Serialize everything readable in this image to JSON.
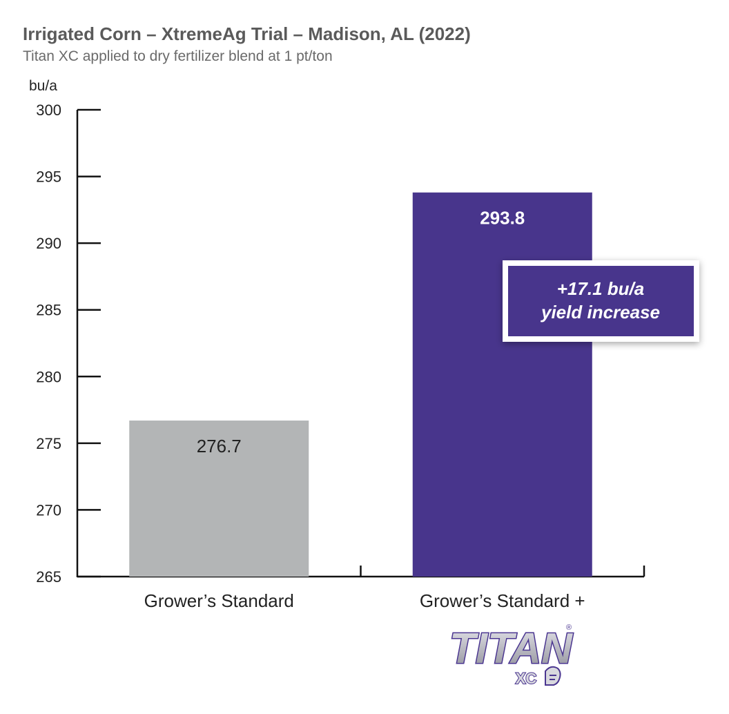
{
  "chart_data": {
    "type": "bar",
    "title": "Irrigated Corn – XtremeAg Trial – Madison, AL (2022)",
    "subtitle": "Titan XC applied to dry fertilizer blend at 1 pt/ton",
    "ylabel": "bu/a",
    "xlabel": "",
    "ylim": [
      265,
      300
    ],
    "yticks": [
      265,
      270,
      275,
      280,
      285,
      290,
      295,
      300
    ],
    "categories": [
      "Grower’s Standard",
      "Grower’s Standard +"
    ],
    "values": [
      276.7,
      293.8
    ],
    "value_labels": [
      "276.7",
      "293.8"
    ],
    "colors": [
      "#b3b5b6",
      "#48358c"
    ],
    "callout": {
      "line1": "+17.1 bu/a",
      "line2": "yield increase",
      "color": "#48358c"
    },
    "logo": {
      "text": "TITAN",
      "sub": "XC",
      "mark": "®"
    },
    "grid": false,
    "legend": "none"
  }
}
